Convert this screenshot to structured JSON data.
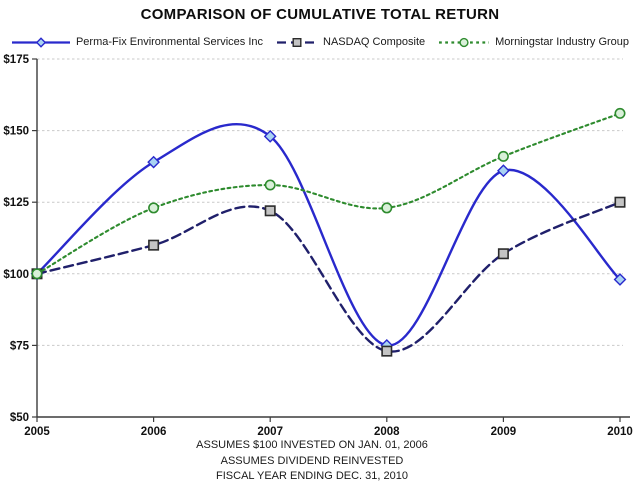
{
  "title": "COMPARISON OF CUMULATIVE TOTAL RETURN",
  "chart_data": {
    "type": "line",
    "title": "COMPARISON OF CUMULATIVE TOTAL RETURN",
    "x": [
      2005,
      2006,
      2007,
      2008,
      2009,
      2010
    ],
    "x_tick_labels": [
      "2005",
      "2006",
      "2007",
      "2008",
      "2009",
      "2010"
    ],
    "y_ticks": [
      50,
      75,
      100,
      125,
      150,
      175
    ],
    "y_tick_labels": [
      "$50",
      "$75",
      "$100",
      "$125",
      "$150",
      "$175"
    ],
    "ylim": [
      50,
      175
    ],
    "grid": "horizontal dashed gridlines at labeled ticks",
    "legend_position": "top",
    "smooth": true,
    "series": [
      {
        "name": "Perma-Fix Environmental Services Inc",
        "values": [
          100,
          139,
          148,
          75,
          136,
          98
        ],
        "color": "#2929cc",
        "line_style": "solid",
        "marker": "diamond",
        "marker_fill": "#a9d3f2",
        "marker_stroke": "#2929cc"
      },
      {
        "name": "NASDAQ Composite",
        "values": [
          100,
          110,
          122,
          73,
          107,
          125
        ],
        "color": "#20206b",
        "line_style": "dashed",
        "marker": "square",
        "marker_fill": "#c4c4c4",
        "marker_stroke": "#2b2b2b"
      },
      {
        "name": "Morningstar Industry Group",
        "values": [
          100,
          123,
          131,
          123,
          141,
          156
        ],
        "color": "#2e8b2e",
        "line_style": "dotted",
        "marker": "circle",
        "marker_fill": "#d9f0d9",
        "marker_stroke": "#2e8b2e"
      }
    ]
  },
  "colors": {
    "grid": "#c9c9c9",
    "axis": "#3c3c3c",
    "text": "#111111"
  },
  "footnotes": [
    "ASSUMES $100 INVESTED ON JAN. 01, 2006",
    "ASSUMES DIVIDEND REINVESTED",
    "FISCAL YEAR ENDING DEC. 31, 2010"
  ]
}
